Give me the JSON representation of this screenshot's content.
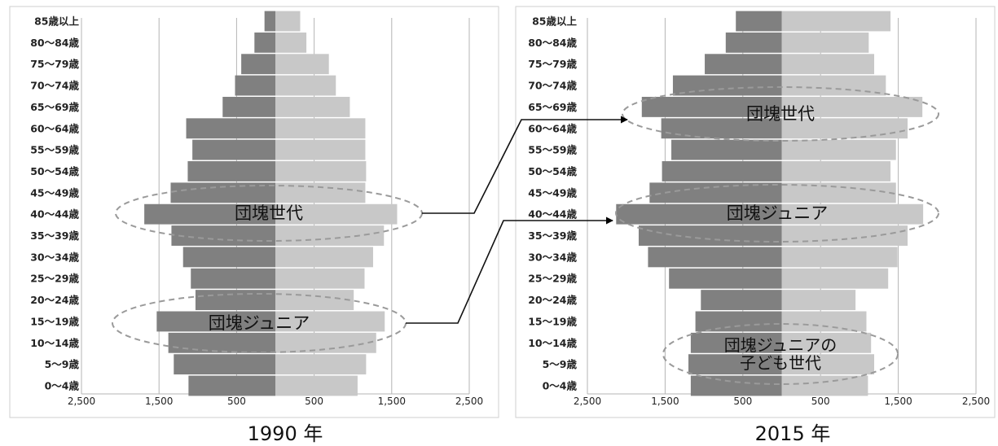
{
  "chart_data": [
    {
      "type": "bar",
      "orientation": "horizontal",
      "layout": "population-pyramid",
      "title": "1990 年",
      "categories": [
        "0〜4歳",
        "5〜9歳",
        "10〜14歳",
        "15〜19歳",
        "20〜24歳",
        "25〜29歳",
        "30〜34歳",
        "35〜39歳",
        "40〜44歳",
        "45〜49歳",
        "50〜54歳",
        "55〜59歳",
        "60〜64歳",
        "65〜69歳",
        "70〜74歳",
        "75〜79歳",
        "80〜84歳",
        "85歳以上"
      ],
      "series": [
        {
          "side": "left",
          "color": "#808080",
          "values": [
            1120,
            1310,
            1380,
            1530,
            1030,
            1090,
            1190,
            1340,
            1690,
            1350,
            1130,
            1070,
            1150,
            680,
            520,
            440,
            270,
            140
          ]
        },
        {
          "side": "right",
          "color": "#c8c8c8",
          "values": [
            1060,
            1170,
            1300,
            1410,
            1010,
            1150,
            1260,
            1400,
            1570,
            1160,
            1170,
            1160,
            1160,
            960,
            780,
            690,
            400,
            320
          ]
        }
      ],
      "xlim": [
        -2500,
        2500
      ],
      "x_tick_values": [
        -2500,
        -1500,
        -500,
        500,
        1500,
        2500
      ],
      "x_tick_labels": [
        "2,500",
        "1,500",
        "500",
        "500",
        "1,500",
        "2,500"
      ],
      "grid": "vertical",
      "annotations": [
        {
          "text": "団塊世代",
          "category": "40〜44歳"
        },
        {
          "text": "団塊ジュニア",
          "category": "15〜19歳"
        }
      ]
    },
    {
      "type": "bar",
      "orientation": "horizontal",
      "layout": "population-pyramid",
      "title": "2015 年",
      "categories": [
        "0〜4歳",
        "5〜9歳",
        "10〜14歳",
        "15〜19歳",
        "20〜24歳",
        "25〜29歳",
        "30〜34歳",
        "35〜39歳",
        "40〜44歳",
        "45〜49歳",
        "50〜54歳",
        "55〜59歳",
        "60〜64歳",
        "65〜69歳",
        "70〜74歳",
        "75〜79歳",
        "80〜84歳",
        "85歳以上"
      ],
      "series": [
        {
          "side": "left",
          "color": "#808080",
          "values": [
            1170,
            1200,
            1170,
            1110,
            1040,
            1450,
            1720,
            1840,
            2130,
            1700,
            1540,
            1420,
            1550,
            1800,
            1400,
            990,
            720,
            590
          ]
        },
        {
          "side": "right",
          "color": "#c8c8c8",
          "values": [
            1110,
            1190,
            1150,
            1090,
            950,
            1370,
            1490,
            1620,
            1820,
            1470,
            1400,
            1470,
            1620,
            1810,
            1340,
            1190,
            1120,
            1400
          ]
        }
      ],
      "xlim": [
        -2500,
        2500
      ],
      "x_tick_values": [
        -2500,
        -1500,
        -500,
        500,
        1500,
        2500
      ],
      "x_tick_labels": [
        "2,500",
        "1,500",
        "500",
        "500",
        "1,500",
        "2,500"
      ],
      "grid": "vertical",
      "annotations": [
        {
          "text": "団塊世代",
          "category": "65〜69歳"
        },
        {
          "text": "団塊ジュニア",
          "category": "40〜44歳"
        },
        {
          "text": "団塊ジュニアの\n子ども世代",
          "category": "5〜9歳"
        }
      ]
    }
  ]
}
